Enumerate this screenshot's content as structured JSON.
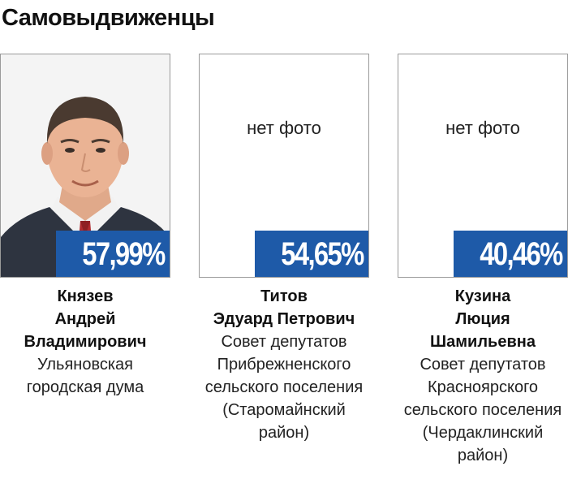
{
  "title": "Самовыдвиженцы",
  "candidates": [
    {
      "percent": "57,99%",
      "name": [
        "Князев",
        "Андрей",
        "Владимирович"
      ],
      "org": [
        "Ульяновская",
        "городская дума"
      ],
      "photo": "portrait"
    },
    {
      "percent": "54,65%",
      "no_photo_label": "нет фото",
      "name": [
        "Титов",
        "Эдуард Петрович"
      ],
      "org": [
        "Совет депутатов",
        "Прибрежненского",
        "сельского поселения",
        "(Старомайнский",
        "район)"
      ]
    },
    {
      "percent": "40,46%",
      "no_photo_label": "нет фото",
      "name": [
        "Кузина",
        "Люция",
        "Шамильевна"
      ],
      "org": [
        "Совет депутатов",
        "Красноярского",
        "сельского поселения",
        "(Чердаклинский",
        "район)"
      ]
    }
  ],
  "colors": {
    "badge": "#1e5aa8",
    "frame": "#9a9a9a"
  }
}
